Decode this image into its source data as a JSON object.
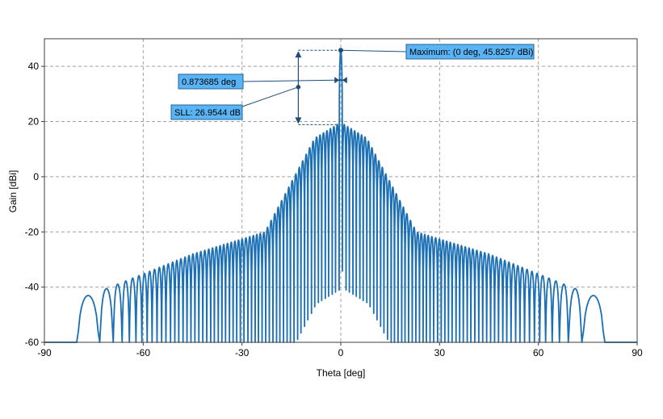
{
  "chart_data": {
    "type": "line",
    "title": "",
    "xlabel": "Theta [deg]",
    "ylabel": "Gain [dBi]",
    "xlim": [
      -90,
      90
    ],
    "ylim": [
      -60,
      50
    ],
    "xticks": [
      -90,
      -60,
      -30,
      0,
      30,
      60,
      90
    ],
    "yticks": [
      -60,
      -40,
      -20,
      0,
      20,
      40
    ],
    "grid": true,
    "grid_style": "dashed",
    "line_color": "#1a6fb5",
    "marker_color": "#1f4e79",
    "callout_fill": "#59b4f5",
    "pattern": {
      "peak_x": 0,
      "peak_gain": 45.8257,
      "first_sidelobe_gain": 18.87,
      "nulls_x": [
        -80.2,
        -73.2,
        -69.1,
        -66.4,
        -64.2,
        -62.2,
        -60.4,
        -58.8,
        -57.3,
        -55.8,
        -54.4,
        -53.1,
        -51.7,
        -50.4,
        -49.2,
        -47.9,
        -46.7,
        -45.5,
        -44.3,
        -43.1,
        -41.9,
        -40.7,
        -39.5,
        -38.4,
        -37.2,
        -36.1,
        -35.0,
        -33.8,
        -32.7,
        -31.6,
        -30.5,
        -29.4,
        -28.2,
        -27.1,
        -26.0,
        -25.0,
        -23.9,
        -22.8,
        -21.7,
        -20.6,
        -19.5,
        -18.5,
        -17.4,
        -16.3,
        -15.3,
        -14.2,
        -13.1,
        -12.1,
        -11.0,
        -10.0,
        -8.9,
        -7.9,
        -6.8,
        -5.8,
        -4.7,
        -3.7,
        -2.6,
        -1.6,
        -0.5,
        0.5,
        1.6,
        2.6,
        3.7,
        4.7,
        5.8,
        6.8,
        7.9,
        8.9,
        10.0,
        11.0,
        12.1,
        13.1,
        14.2,
        15.3,
        16.3,
        17.4,
        18.5,
        19.5,
        20.6,
        21.7,
        22.8,
        23.9,
        25.0,
        26.0,
        27.1,
        28.2,
        29.4,
        30.5,
        31.6,
        32.7,
        33.8,
        35.0,
        36.1,
        37.2,
        38.4,
        39.5,
        40.7,
        41.9,
        43.1,
        44.3,
        45.5,
        46.7,
        47.9,
        49.2,
        50.4,
        51.7,
        53.1,
        54.4,
        55.8,
        57.3,
        58.8,
        60.4,
        62.2,
        64.2,
        66.4,
        69.1,
        73.2,
        80.2
      ]
    },
    "annotations": {
      "maximum": "Maximum: (0 deg, 45.8257 dBi)",
      "beamwidth": "0.873685 deg",
      "sll": "SLL: 26.9544 dB",
      "beamwidth_edges_x": [
        -0.4368,
        0.4368
      ],
      "beamwidth_level": 35,
      "sll_marker_x": -12.9
    }
  }
}
